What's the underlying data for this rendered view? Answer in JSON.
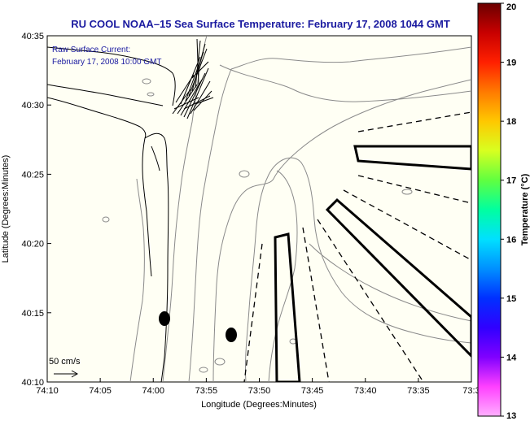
{
  "title": "RU COOL  NOAA–15  Sea Surface Temperature:  February 17, 2008 1044 GMT",
  "annotation": {
    "line1": "Raw Surface Current:",
    "line2": "February 17, 2008 10:00 GMT"
  },
  "scale": {
    "label": "50 cm/s"
  },
  "axes": {
    "xlabel": "Longitude (Degrees:Minutes)",
    "ylabel": "Latitude (Degrees:Minutes)",
    "xticks": [
      "74:10",
      "74:05",
      "74:00",
      "73:55",
      "73:50",
      "73:45",
      "73:40",
      "73:35",
      "73:3"
    ],
    "yticks": [
      "40:35",
      "40:30",
      "40:25",
      "40:20",
      "40:15",
      "40:10"
    ]
  },
  "colorbar": {
    "label": "Temperature (°C)",
    "ticks": [
      "20",
      "19",
      "18",
      "17",
      "16",
      "15",
      "14",
      "13"
    ],
    "colors": [
      "#6b0000",
      "#c80000",
      "#ff2000",
      "#ff7a00",
      "#ffc800",
      "#d8ff20",
      "#60ff40",
      "#00ffa0",
      "#00e0ff",
      "#0090ff",
      "#0030ff",
      "#3000ff",
      "#8000ff",
      "#ff40ff",
      "#ffb0ff"
    ]
  },
  "colors": {
    "ocean": "#fffff4",
    "title": "#1a1aa0",
    "contour": "#888888"
  }
}
